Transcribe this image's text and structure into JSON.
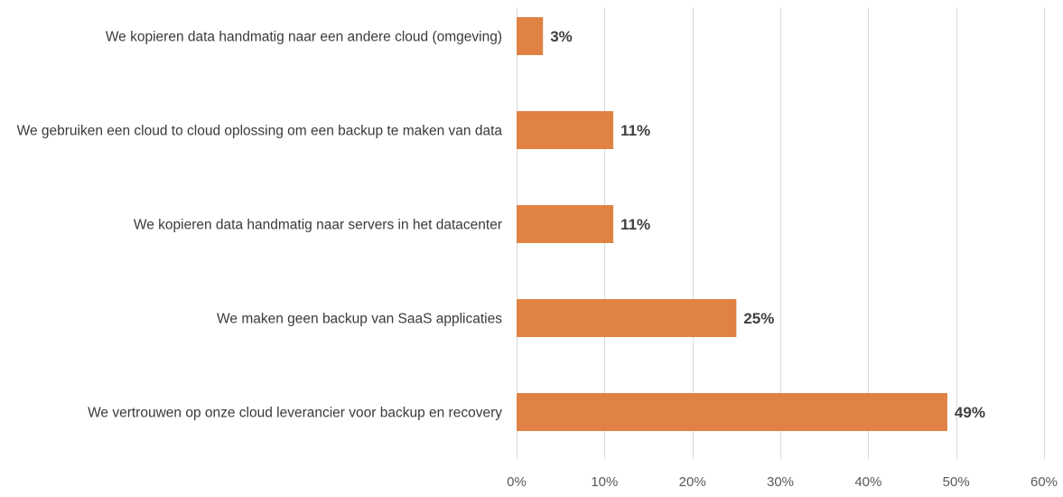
{
  "chart_data": {
    "type": "bar",
    "orientation": "horizontal",
    "categories": [
      "We kopieren data handmatig naar een andere cloud (omgeving)",
      "We gebruiken een cloud to cloud oplossing om een backup te maken van data",
      "We kopieren data handmatig naar servers in het datacenter",
      "We maken geen backup van SaaS applicaties",
      "We vertrouwen op onze cloud leverancier voor backup en recovery"
    ],
    "values": [
      3,
      11,
      11,
      25,
      49
    ],
    "data_labels": [
      "3%",
      "11%",
      "11%",
      "25%",
      "49%"
    ],
    "xlim": [
      0,
      60
    ],
    "x_ticks": [
      0,
      10,
      20,
      30,
      40,
      50,
      60
    ],
    "x_tick_labels": [
      "0%",
      "10%",
      "20%",
      "30%",
      "40%",
      "50%",
      "60%"
    ],
    "title": "",
    "xlabel": "",
    "ylabel": "",
    "grid": true,
    "bar_color": "#E08244"
  }
}
